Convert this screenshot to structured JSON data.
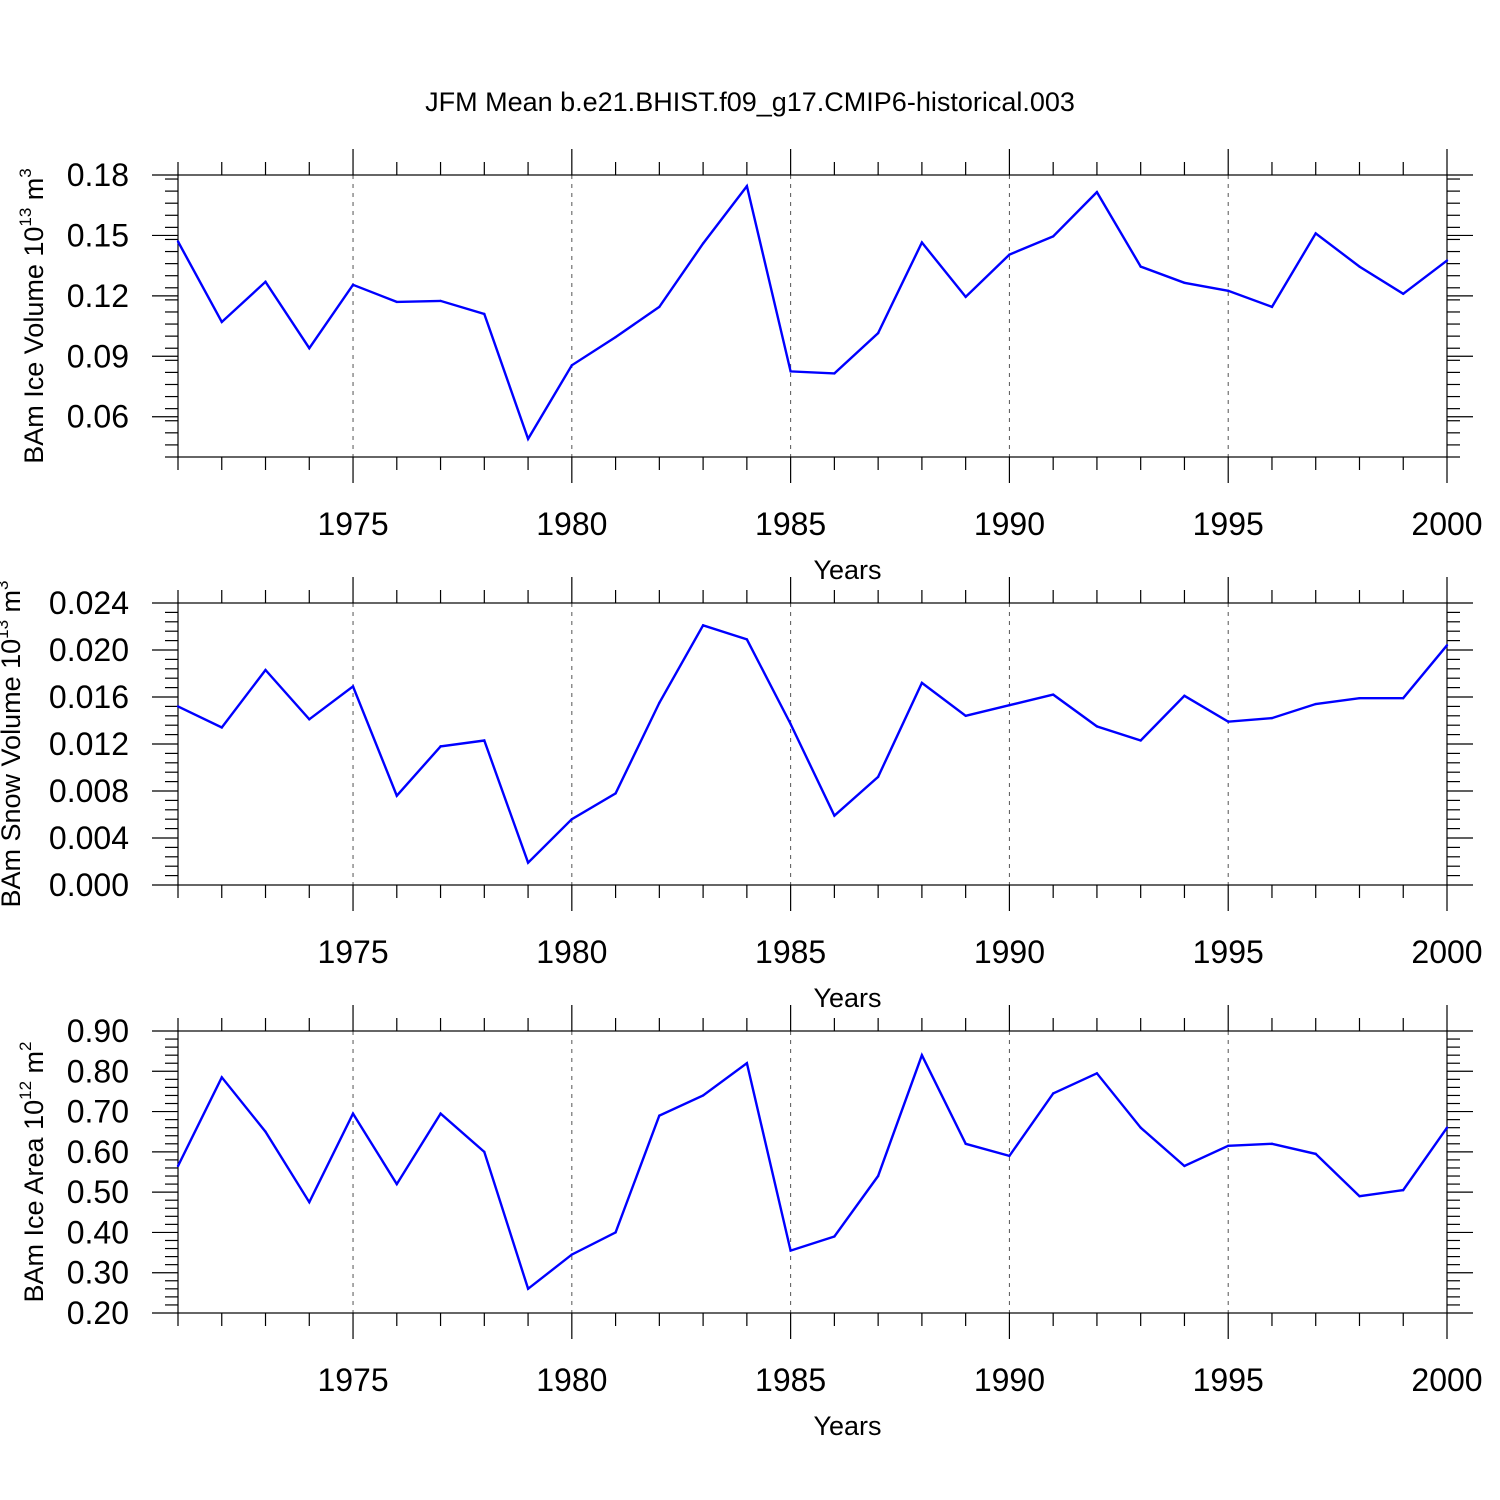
{
  "figure": {
    "title": "JFM Mean b.e21.BHIST.f09_g17.CMIP6-historical.003",
    "line_color": "#0000ff"
  },
  "chart_data": [
    {
      "type": "line",
      "title": "JFM Mean b.e21.BHIST.f09_g17.CMIP6-historical.003",
      "xlabel": "Years",
      "ylabel": "BAm Ice Volume 10",
      "ylabel_exp": "13",
      "ylabel_unit": "m",
      "ylabel_unit_exp": "3",
      "xlim": [
        1971,
        2000
      ],
      "ylim": [
        0.04,
        0.18
      ],
      "xticks": [
        1975,
        1980,
        1985,
        1990,
        1995,
        2000
      ],
      "yticks": [
        "0.06",
        "0.09",
        "0.12",
        "0.15",
        "0.18"
      ],
      "ytick_values": [
        0.06,
        0.09,
        0.12,
        0.15,
        0.18
      ],
      "yminor_step": 0.006,
      "x": [
        1971,
        1972,
        1973,
        1974,
        1975,
        1976,
        1977,
        1978,
        1979,
        1980,
        1981,
        1982,
        1983,
        1984,
        1985,
        1986,
        1987,
        1988,
        1989,
        1990,
        1991,
        1992,
        1993,
        1994,
        1995,
        1996,
        1997,
        1998,
        1999,
        2000
      ],
      "series": [
        {
          "name": "BAm Ice Volume",
          "values": [
            0.147,
            0.107,
            0.127,
            0.094,
            0.1255,
            0.117,
            0.1175,
            0.111,
            0.049,
            0.0855,
            0.0995,
            0.1145,
            0.146,
            0.1745,
            0.0825,
            0.0815,
            0.1015,
            0.1465,
            0.1195,
            0.1405,
            0.1495,
            0.1715,
            0.1345,
            0.1265,
            0.1225,
            0.1145,
            0.151,
            0.1345,
            0.121,
            0.1375
          ]
        }
      ]
    },
    {
      "type": "line",
      "xlabel": "Years",
      "ylabel": "BAm Snow Volume 10",
      "ylabel_exp": "13",
      "ylabel_unit": "m",
      "ylabel_unit_exp": "3",
      "xlim": [
        1971,
        2000
      ],
      "ylim": [
        0.0,
        0.024
      ],
      "xticks": [
        1975,
        1980,
        1985,
        1990,
        1995,
        2000
      ],
      "yticks": [
        "0.000",
        "0.004",
        "0.008",
        "0.012",
        "0.016",
        "0.020",
        "0.024"
      ],
      "ytick_values": [
        0.0,
        0.004,
        0.008,
        0.012,
        0.016,
        0.02,
        0.024
      ],
      "yminor_step": 0.0008,
      "x": [
        1971,
        1972,
        1973,
        1974,
        1975,
        1976,
        1977,
        1978,
        1979,
        1980,
        1981,
        1982,
        1983,
        1984,
        1985,
        1986,
        1987,
        1988,
        1989,
        1990,
        1991,
        1992,
        1993,
        1994,
        1995,
        1996,
        1997,
        1998,
        1999,
        2000
      ],
      "series": [
        {
          "name": "BAm Snow Volume",
          "values": [
            0.0152,
            0.0134,
            0.0183,
            0.0141,
            0.0169,
            0.0076,
            0.0118,
            0.0123,
            0.0019,
            0.0056,
            0.0078,
            0.0155,
            0.0221,
            0.0209,
            0.0137,
            0.0059,
            0.0092,
            0.0172,
            0.0144,
            0.0153,
            0.0162,
            0.0135,
            0.0123,
            0.0161,
            0.0139,
            0.0142,
            0.0154,
            0.0159,
            0.0159,
            0.0204
          ]
        }
      ]
    },
    {
      "type": "line",
      "xlabel": "Years",
      "ylabel": "BAm Ice Area 10",
      "ylabel_exp": "12",
      "ylabel_unit": "m",
      "ylabel_unit_exp": "2",
      "xlim": [
        1971,
        2000
      ],
      "ylim": [
        0.2,
        0.9
      ],
      "xticks": [
        1975,
        1980,
        1985,
        1990,
        1995,
        2000
      ],
      "yticks": [
        "0.20",
        "0.30",
        "0.40",
        "0.50",
        "0.60",
        "0.70",
        "0.80",
        "0.90"
      ],
      "ytick_values": [
        0.2,
        0.3,
        0.4,
        0.5,
        0.6,
        0.7,
        0.8,
        0.9
      ],
      "yminor_step": 0.02,
      "x": [
        1971,
        1972,
        1973,
        1974,
        1975,
        1976,
        1977,
        1978,
        1979,
        1980,
        1981,
        1982,
        1983,
        1984,
        1985,
        1986,
        1987,
        1988,
        1989,
        1990,
        1991,
        1992,
        1993,
        1994,
        1995,
        1996,
        1997,
        1998,
        1999,
        2000
      ],
      "series": [
        {
          "name": "BAm Ice Area",
          "values": [
            0.565,
            0.785,
            0.65,
            0.475,
            0.695,
            0.52,
            0.695,
            0.6,
            0.26,
            0.345,
            0.4,
            0.69,
            0.74,
            0.82,
            0.355,
            0.39,
            0.54,
            0.84,
            0.62,
            0.59,
            0.745,
            0.795,
            0.66,
            0.565,
            0.615,
            0.62,
            0.595,
            0.49,
            0.505,
            0.66
          ]
        }
      ]
    }
  ]
}
